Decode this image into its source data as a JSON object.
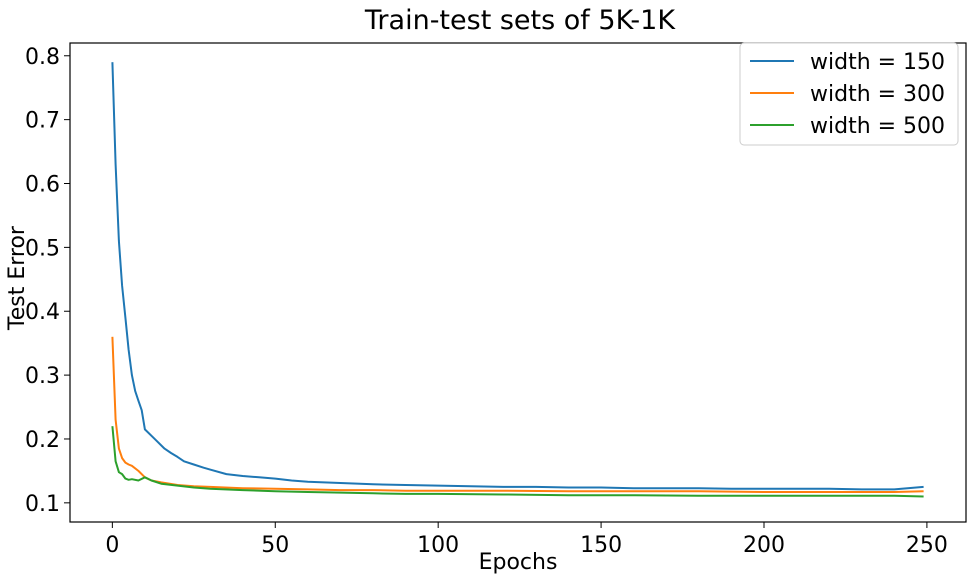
{
  "chart_data": {
    "type": "line",
    "title": "Train-test sets of 5K-1K",
    "xlabel": "Epochs",
    "ylabel": "Test Error",
    "xlim": [
      -13,
      262
    ],
    "ylim": [
      0.07,
      0.82
    ],
    "xticks": [
      0,
      50,
      100,
      150,
      200,
      250
    ],
    "xtick_labels": [
      "0",
      "50",
      "100",
      "150",
      "200",
      "250"
    ],
    "yticks": [
      0.1,
      0.2,
      0.3,
      0.4,
      0.5,
      0.6,
      0.7,
      0.8
    ],
    "ytick_labels": [
      "0.1",
      "0.2",
      "0.3",
      "0.4",
      "0.5",
      "0.6",
      "0.7",
      "0.8"
    ],
    "grid": false,
    "legend_position": "top-right",
    "series": [
      {
        "name": "width = 150",
        "color": "#1f77b4",
        "x": [
          0,
          1,
          2,
          3,
          4,
          5,
          6,
          7,
          8,
          9,
          10,
          12,
          14,
          16,
          18,
          20,
          22,
          25,
          28,
          30,
          35,
          40,
          45,
          50,
          55,
          60,
          70,
          80,
          90,
          100,
          110,
          120,
          130,
          140,
          150,
          160,
          170,
          180,
          190,
          200,
          210,
          220,
          230,
          240,
          249
        ],
        "y": [
          0.79,
          0.63,
          0.51,
          0.44,
          0.39,
          0.34,
          0.3,
          0.275,
          0.26,
          0.245,
          0.215,
          0.205,
          0.195,
          0.185,
          0.178,
          0.172,
          0.165,
          0.16,
          0.155,
          0.152,
          0.145,
          0.142,
          0.14,
          0.138,
          0.135,
          0.133,
          0.131,
          0.129,
          0.128,
          0.127,
          0.126,
          0.125,
          0.125,
          0.124,
          0.124,
          0.123,
          0.123,
          0.123,
          0.122,
          0.122,
          0.122,
          0.122,
          0.121,
          0.121,
          0.125
        ]
      },
      {
        "name": "width = 300",
        "color": "#ff7f0e",
        "x": [
          0,
          1,
          2,
          3,
          4,
          5,
          6,
          8,
          10,
          12,
          15,
          20,
          25,
          30,
          40,
          50,
          60,
          70,
          80,
          90,
          100,
          120,
          140,
          160,
          180,
          200,
          220,
          240,
          249
        ],
        "y": [
          0.36,
          0.23,
          0.185,
          0.17,
          0.163,
          0.16,
          0.158,
          0.15,
          0.14,
          0.135,
          0.132,
          0.128,
          0.126,
          0.125,
          0.123,
          0.122,
          0.121,
          0.12,
          0.12,
          0.119,
          0.119,
          0.119,
          0.118,
          0.118,
          0.118,
          0.117,
          0.117,
          0.117,
          0.118
        ]
      },
      {
        "name": "width = 500",
        "color": "#2ca02c",
        "x": [
          0,
          1,
          2,
          3,
          4,
          5,
          6,
          8,
          10,
          12,
          15,
          20,
          25,
          30,
          40,
          50,
          60,
          70,
          80,
          90,
          100,
          120,
          140,
          160,
          180,
          200,
          220,
          240,
          249
        ],
        "y": [
          0.22,
          0.165,
          0.148,
          0.145,
          0.138,
          0.136,
          0.137,
          0.135,
          0.14,
          0.135,
          0.13,
          0.127,
          0.124,
          0.122,
          0.12,
          0.118,
          0.117,
          0.116,
          0.115,
          0.114,
          0.114,
          0.113,
          0.112,
          0.112,
          0.111,
          0.111,
          0.111,
          0.111,
          0.11
        ]
      }
    ]
  }
}
